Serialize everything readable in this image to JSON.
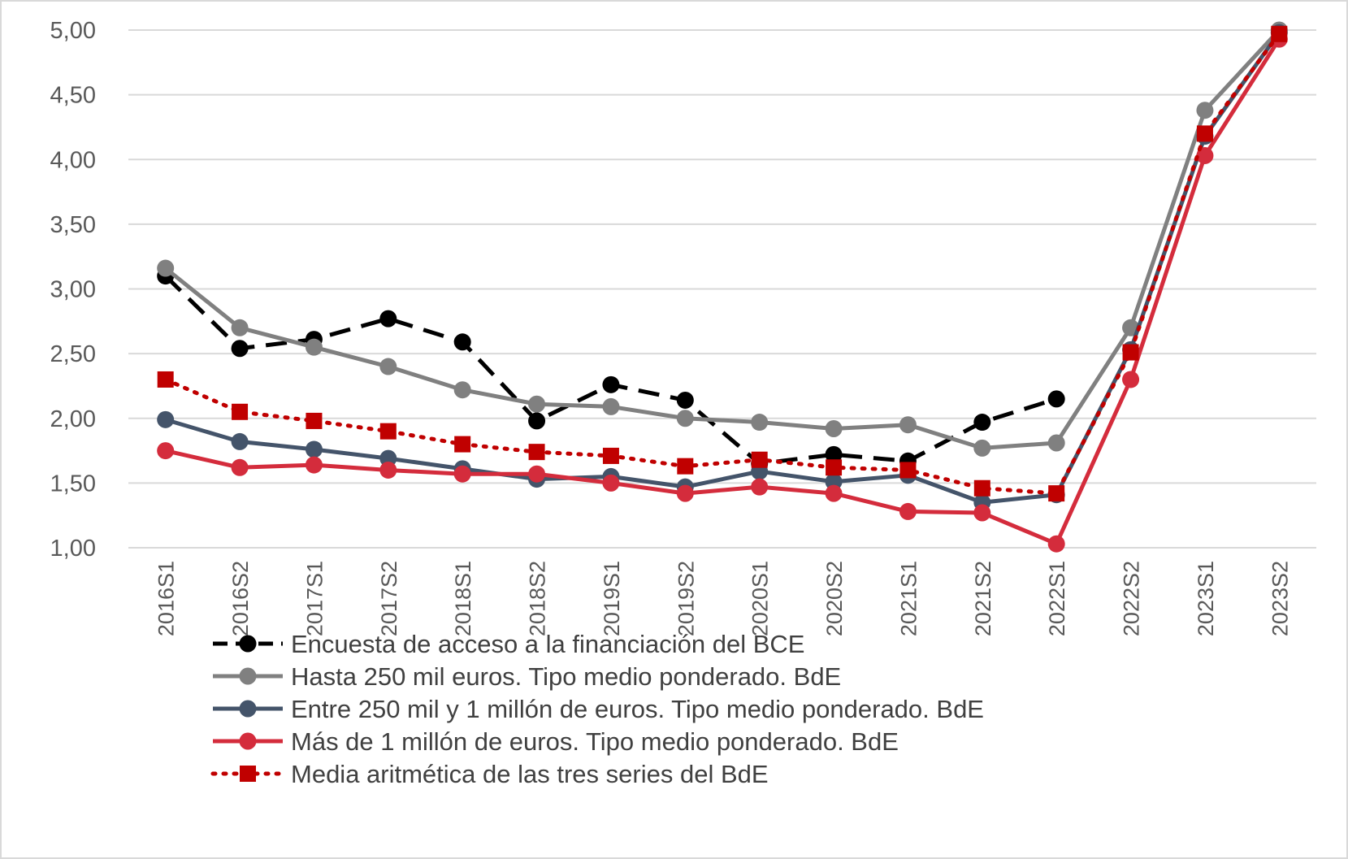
{
  "chart_data": {
    "type": "line",
    "title": "",
    "xlabel": "",
    "ylabel": "",
    "ylim": [
      1.0,
      5.0
    ],
    "yticks": [
      "1,00",
      "1,50",
      "2,00",
      "2,50",
      "3,00",
      "3,50",
      "4,00",
      "4,50",
      "5,00"
    ],
    "ytick_values": [
      1.0,
      1.5,
      2.0,
      2.5,
      3.0,
      3.5,
      4.0,
      4.5,
      5.0
    ],
    "grid": "horizontal",
    "legend_position": "bottom",
    "categories": [
      "2016S1",
      "2016S2",
      "2017S1",
      "2017S2",
      "2018S1",
      "2018S2",
      "2019S1",
      "2019S2",
      "2020S1",
      "2020S2",
      "2021S1",
      "2021S2",
      "2022S1",
      "2022S2",
      "2023S1",
      "2023S2"
    ],
    "series": [
      {
        "name": "Encuesta de acceso a la financiación del BCE",
        "color": "#000000",
        "line_style": "dashed",
        "marker": "circle",
        "values": [
          3.1,
          2.54,
          2.61,
          2.77,
          2.59,
          1.98,
          2.26,
          2.14,
          1.65,
          1.72,
          1.67,
          1.97,
          2.15,
          null,
          null,
          null
        ]
      },
      {
        "name": "Hasta 250 mil euros. Tipo medio ponderado. BdE",
        "color": "#808080",
        "line_style": "solid",
        "marker": "circle",
        "values": [
          3.16,
          2.7,
          2.55,
          2.4,
          2.22,
          2.11,
          2.09,
          2.0,
          1.97,
          1.92,
          1.95,
          1.77,
          1.81,
          2.7,
          4.38,
          5.0
        ]
      },
      {
        "name": "Entre 250 mil y 1 millón de euros. Tipo medio ponderado. BdE",
        "color": "#44546a",
        "line_style": "solid",
        "marker": "circle",
        "values": [
          1.99,
          1.82,
          1.76,
          1.69,
          1.61,
          1.53,
          1.55,
          1.47,
          1.59,
          1.51,
          1.56,
          1.35,
          1.41,
          2.53,
          4.18,
          4.98
        ]
      },
      {
        "name": "Más de 1 millón de euros. Tipo medio ponderado. BdE",
        "color": "#d42c3c",
        "line_style": "solid",
        "marker": "circle",
        "values": [
          1.75,
          1.62,
          1.64,
          1.6,
          1.57,
          1.57,
          1.5,
          1.42,
          1.47,
          1.42,
          1.28,
          1.27,
          1.03,
          2.3,
          4.03,
          4.93
        ]
      },
      {
        "name": "Media aritmética de las tres series del BdE",
        "color": "#c00000",
        "line_style": "dotted",
        "marker": "square",
        "values": [
          2.3,
          2.05,
          1.98,
          1.9,
          1.8,
          1.74,
          1.71,
          1.63,
          1.68,
          1.62,
          1.6,
          1.46,
          1.42,
          2.51,
          4.2,
          4.97
        ]
      }
    ]
  }
}
